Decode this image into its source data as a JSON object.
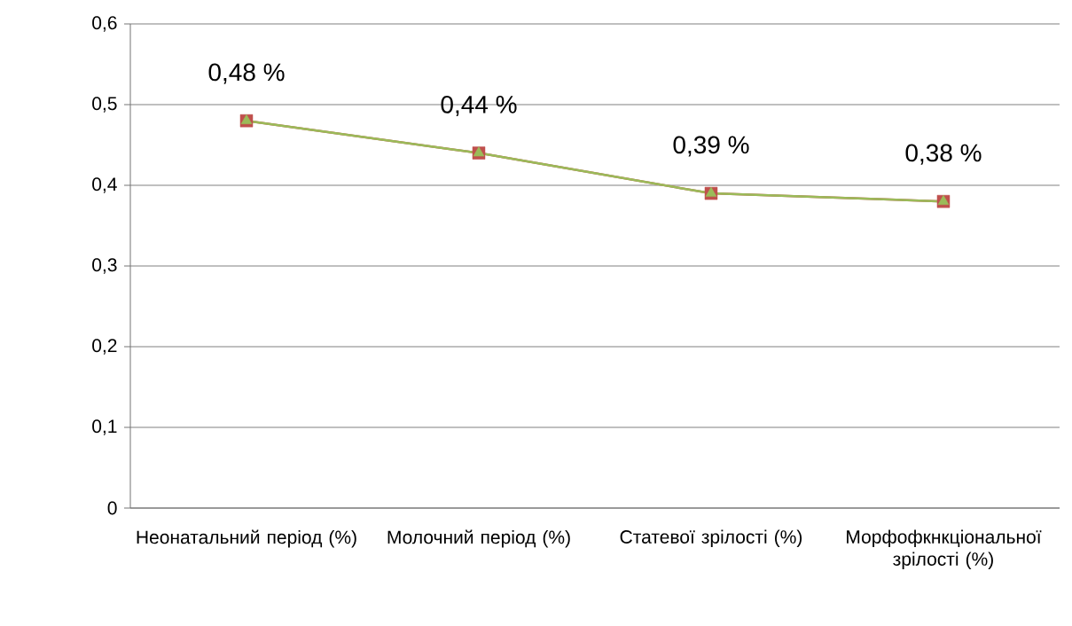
{
  "chart_data": {
    "type": "line",
    "categories": [
      "Неонатальний період (%)",
      "Молочний період (%)",
      "Статевої зрілості (%)",
      "Морфофкнкціональної зрілості (%)"
    ],
    "series": [
      {
        "color": "#c0504d",
        "marker": "square",
        "values": [
          0.48,
          0.44,
          0.39,
          0.38
        ]
      },
      {
        "color": "#9bbb59",
        "marker": "triangle",
        "values": [
          0.48,
          0.44,
          0.39,
          0.38
        ],
        "value_labels": [
          "0,48 %",
          "0,44 %",
          "0,39 %",
          "0,38 %"
        ]
      }
    ],
    "ylim": [
      0,
      0.6
    ],
    "yticks": [
      {
        "value": 0,
        "label": "0"
      },
      {
        "value": 0.1,
        "label": "0,1"
      },
      {
        "value": 0.2,
        "label": "0,2"
      },
      {
        "value": 0.3,
        "label": "0,3"
      },
      {
        "value": 0.4,
        "label": "0,4"
      },
      {
        "value": 0.5,
        "label": "0,5"
      },
      {
        "value": 0.6,
        "label": "0,6"
      }
    ],
    "grid": "y"
  }
}
